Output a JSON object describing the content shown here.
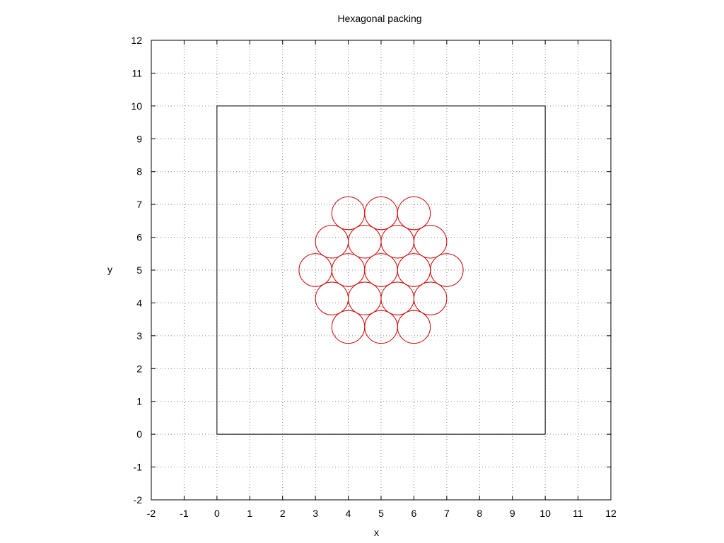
{
  "chart_data": {
    "type": "scatter",
    "title": "Hexagonal packing",
    "xlabel": "x",
    "ylabel": "y",
    "xlim": [
      -2,
      12
    ],
    "ylim": [
      -2,
      12
    ],
    "xticks": [
      "-2",
      "-1",
      "0",
      "1",
      "2",
      "3",
      "4",
      "5",
      "6",
      "7",
      "8",
      "9",
      "10",
      "11",
      "12"
    ],
    "yticks": [
      "-2",
      "-1",
      "0",
      "1",
      "2",
      "3",
      "4",
      "5",
      "6",
      "7",
      "8",
      "9",
      "10",
      "11",
      "12"
    ],
    "grid": true,
    "grid_style": "dotted",
    "boundary_square": {
      "x_min": 0,
      "x_max": 10,
      "y_min": 0,
      "y_max": 10,
      "color": "#000000"
    },
    "circle_radius": 0.5,
    "circle_color": "#cc0000",
    "circles": [
      {
        "x": 4.0,
        "y": 6.732
      },
      {
        "x": 5.0,
        "y": 6.732
      },
      {
        "x": 6.0,
        "y": 6.732
      },
      {
        "x": 3.5,
        "y": 5.866
      },
      {
        "x": 4.5,
        "y": 5.866
      },
      {
        "x": 5.5,
        "y": 5.866
      },
      {
        "x": 6.5,
        "y": 5.866
      },
      {
        "x": 3.0,
        "y": 5.0
      },
      {
        "x": 4.0,
        "y": 5.0
      },
      {
        "x": 5.0,
        "y": 5.0
      },
      {
        "x": 6.0,
        "y": 5.0
      },
      {
        "x": 7.0,
        "y": 5.0
      },
      {
        "x": 3.5,
        "y": 4.134
      },
      {
        "x": 4.5,
        "y": 4.134
      },
      {
        "x": 5.5,
        "y": 4.134
      },
      {
        "x": 6.5,
        "y": 4.134
      },
      {
        "x": 4.0,
        "y": 3.268
      },
      {
        "x": 5.0,
        "y": 3.268
      },
      {
        "x": 6.0,
        "y": 3.268
      }
    ]
  }
}
